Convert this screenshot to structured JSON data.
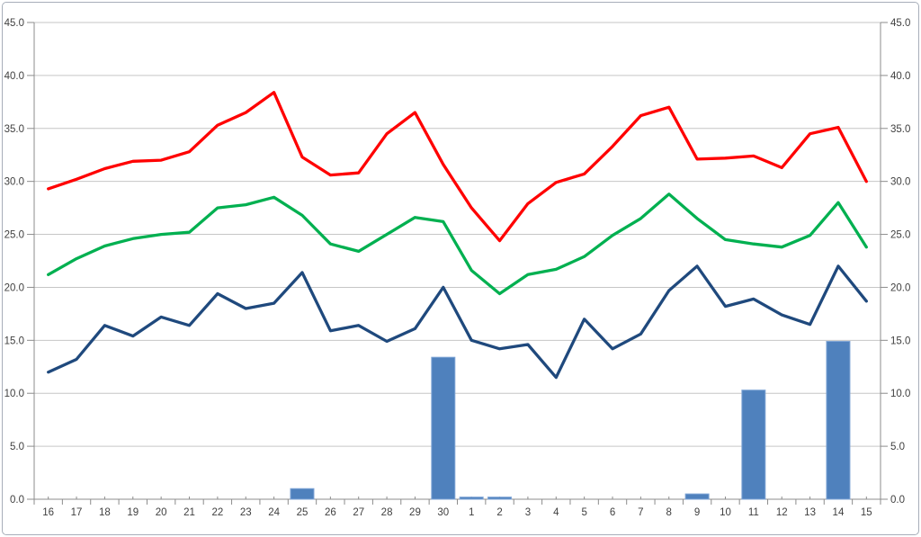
{
  "chart_data": {
    "type": "combo",
    "title": "",
    "xlabel": "",
    "ylabel": "",
    "categories": [
      "16",
      "17",
      "18",
      "19",
      "20",
      "21",
      "22",
      "23",
      "24",
      "25",
      "26",
      "27",
      "28",
      "29",
      "30",
      "1",
      "2",
      "3",
      "4",
      "5",
      "6",
      "7",
      "8",
      "9",
      "10",
      "11",
      "12",
      "13",
      "14",
      "15"
    ],
    "series": [
      {
        "name": "bars",
        "type": "bar",
        "color": "#4f81bd",
        "edge_color": "#7fa5d6",
        "values": [
          0,
          0,
          0,
          0,
          0,
          0,
          0,
          0,
          0,
          1.0,
          0,
          0,
          0,
          0,
          13.4,
          0.2,
          0.2,
          0,
          0,
          0,
          0,
          0,
          0,
          0.5,
          0,
          10.3,
          0,
          0,
          14.9,
          0
        ]
      },
      {
        "name": "line-red",
        "type": "line",
        "color": "#ff0000",
        "values": [
          29.3,
          30.2,
          31.2,
          31.9,
          32.0,
          32.8,
          35.3,
          36.5,
          38.4,
          32.3,
          30.6,
          30.8,
          34.5,
          36.5,
          31.6,
          27.5,
          24.4,
          27.9,
          29.9,
          30.7,
          33.3,
          36.2,
          37.0,
          32.1,
          32.2,
          32.4,
          31.3,
          34.5,
          35.1,
          30.0
        ]
      },
      {
        "name": "line-green",
        "type": "line",
        "color": "#00b050",
        "values": [
          21.2,
          22.7,
          23.9,
          24.6,
          25.0,
          25.2,
          27.5,
          27.8,
          28.5,
          26.8,
          24.1,
          23.4,
          25.0,
          26.6,
          26.2,
          21.6,
          19.4,
          21.2,
          21.7,
          22.9,
          24.9,
          26.5,
          28.8,
          26.5,
          24.5,
          24.1,
          23.8,
          24.9,
          28.0,
          23.8
        ]
      },
      {
        "name": "line-navy",
        "type": "line",
        "color": "#1f497d",
        "values": [
          12.0,
          13.2,
          16.4,
          15.4,
          17.2,
          16.4,
          19.4,
          18.0,
          18.5,
          21.4,
          15.9,
          16.4,
          14.9,
          16.1,
          20.0,
          15.0,
          14.2,
          14.6,
          11.5,
          17.0,
          14.2,
          15.6,
          19.7,
          22.0,
          18.2,
          18.9,
          17.4,
          16.5,
          22.0,
          18.7
        ]
      }
    ],
    "y_axis": {
      "min": 0,
      "max": 45,
      "step": 5,
      "tick_labels": [
        "0.0",
        "5.0",
        "10.0",
        "15.0",
        "20.0",
        "25.0",
        "30.0",
        "35.0",
        "40.0",
        "45.0"
      ],
      "left": true,
      "right": true
    },
    "grid": true,
    "legend": "none",
    "styles": {
      "grid_color": "#c6c6c6",
      "axis_color": "#8c8c8c",
      "label_color": "#404040",
      "background": "#ffffff",
      "border_color": "#a7aeb9"
    }
  }
}
